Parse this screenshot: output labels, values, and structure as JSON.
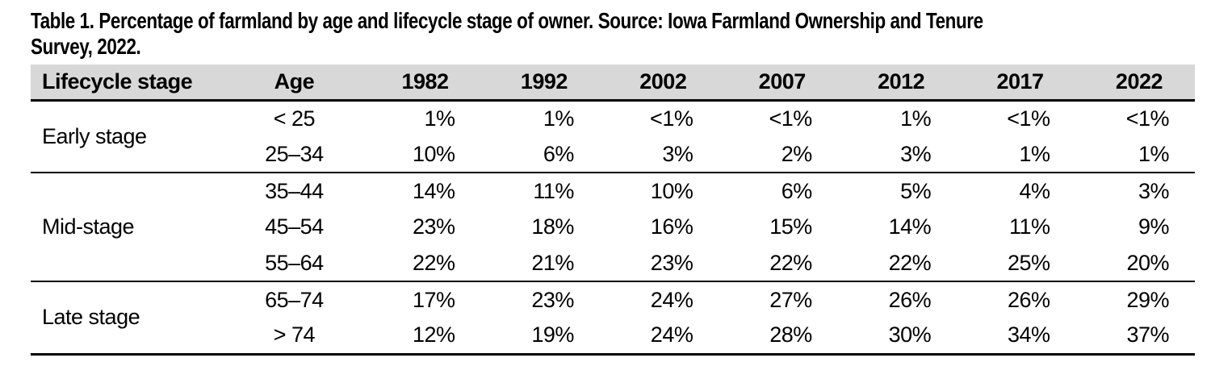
{
  "title": {
    "line1": "Table 1. Percentage of farmland by age and lifecycle stage of owner. Source: Iowa Farmland Ownership and Tenure",
    "line2": "Survey, 2022."
  },
  "table": {
    "headers": [
      "Lifecycle stage",
      "Age",
      "1982",
      "1992",
      "2002",
      "2007",
      "2012",
      "2017",
      "2022"
    ],
    "groups": [
      {
        "stage": "Early stage",
        "rows": [
          {
            "age": "< 25",
            "values": [
              "1%",
              "1%",
              "<1%",
              "<1%",
              "1%",
              "<1%",
              "<1%"
            ]
          },
          {
            "age": "25–34",
            "values": [
              "10%",
              "6%",
              "3%",
              "2%",
              "3%",
              "1%",
              "1%"
            ]
          }
        ]
      },
      {
        "stage": "Mid-stage",
        "rows": [
          {
            "age": "35–44",
            "values": [
              "14%",
              "11%",
              "10%",
              "6%",
              "5%",
              "4%",
              "3%"
            ]
          },
          {
            "age": "45–54",
            "values": [
              "23%",
              "18%",
              "16%",
              "15%",
              "14%",
              "11%",
              "9%"
            ]
          },
          {
            "age": "55–64",
            "values": [
              "22%",
              "21%",
              "23%",
              "22%",
              "22%",
              "25%",
              "20%"
            ]
          }
        ]
      },
      {
        "stage": "Late stage",
        "rows": [
          {
            "age": "65–74",
            "values": [
              "17%",
              "23%",
              "24%",
              "27%",
              "26%",
              "26%",
              "29%"
            ]
          },
          {
            "age": "> 74",
            "values": [
              "12%",
              "19%",
              "24%",
              "28%",
              "30%",
              "34%",
              "37%"
            ]
          }
        ]
      }
    ]
  },
  "colors": {
    "header_bg": "#d8d8d8",
    "rule": "#000000",
    "text": "#000000",
    "page_bg": "#ffffff"
  }
}
